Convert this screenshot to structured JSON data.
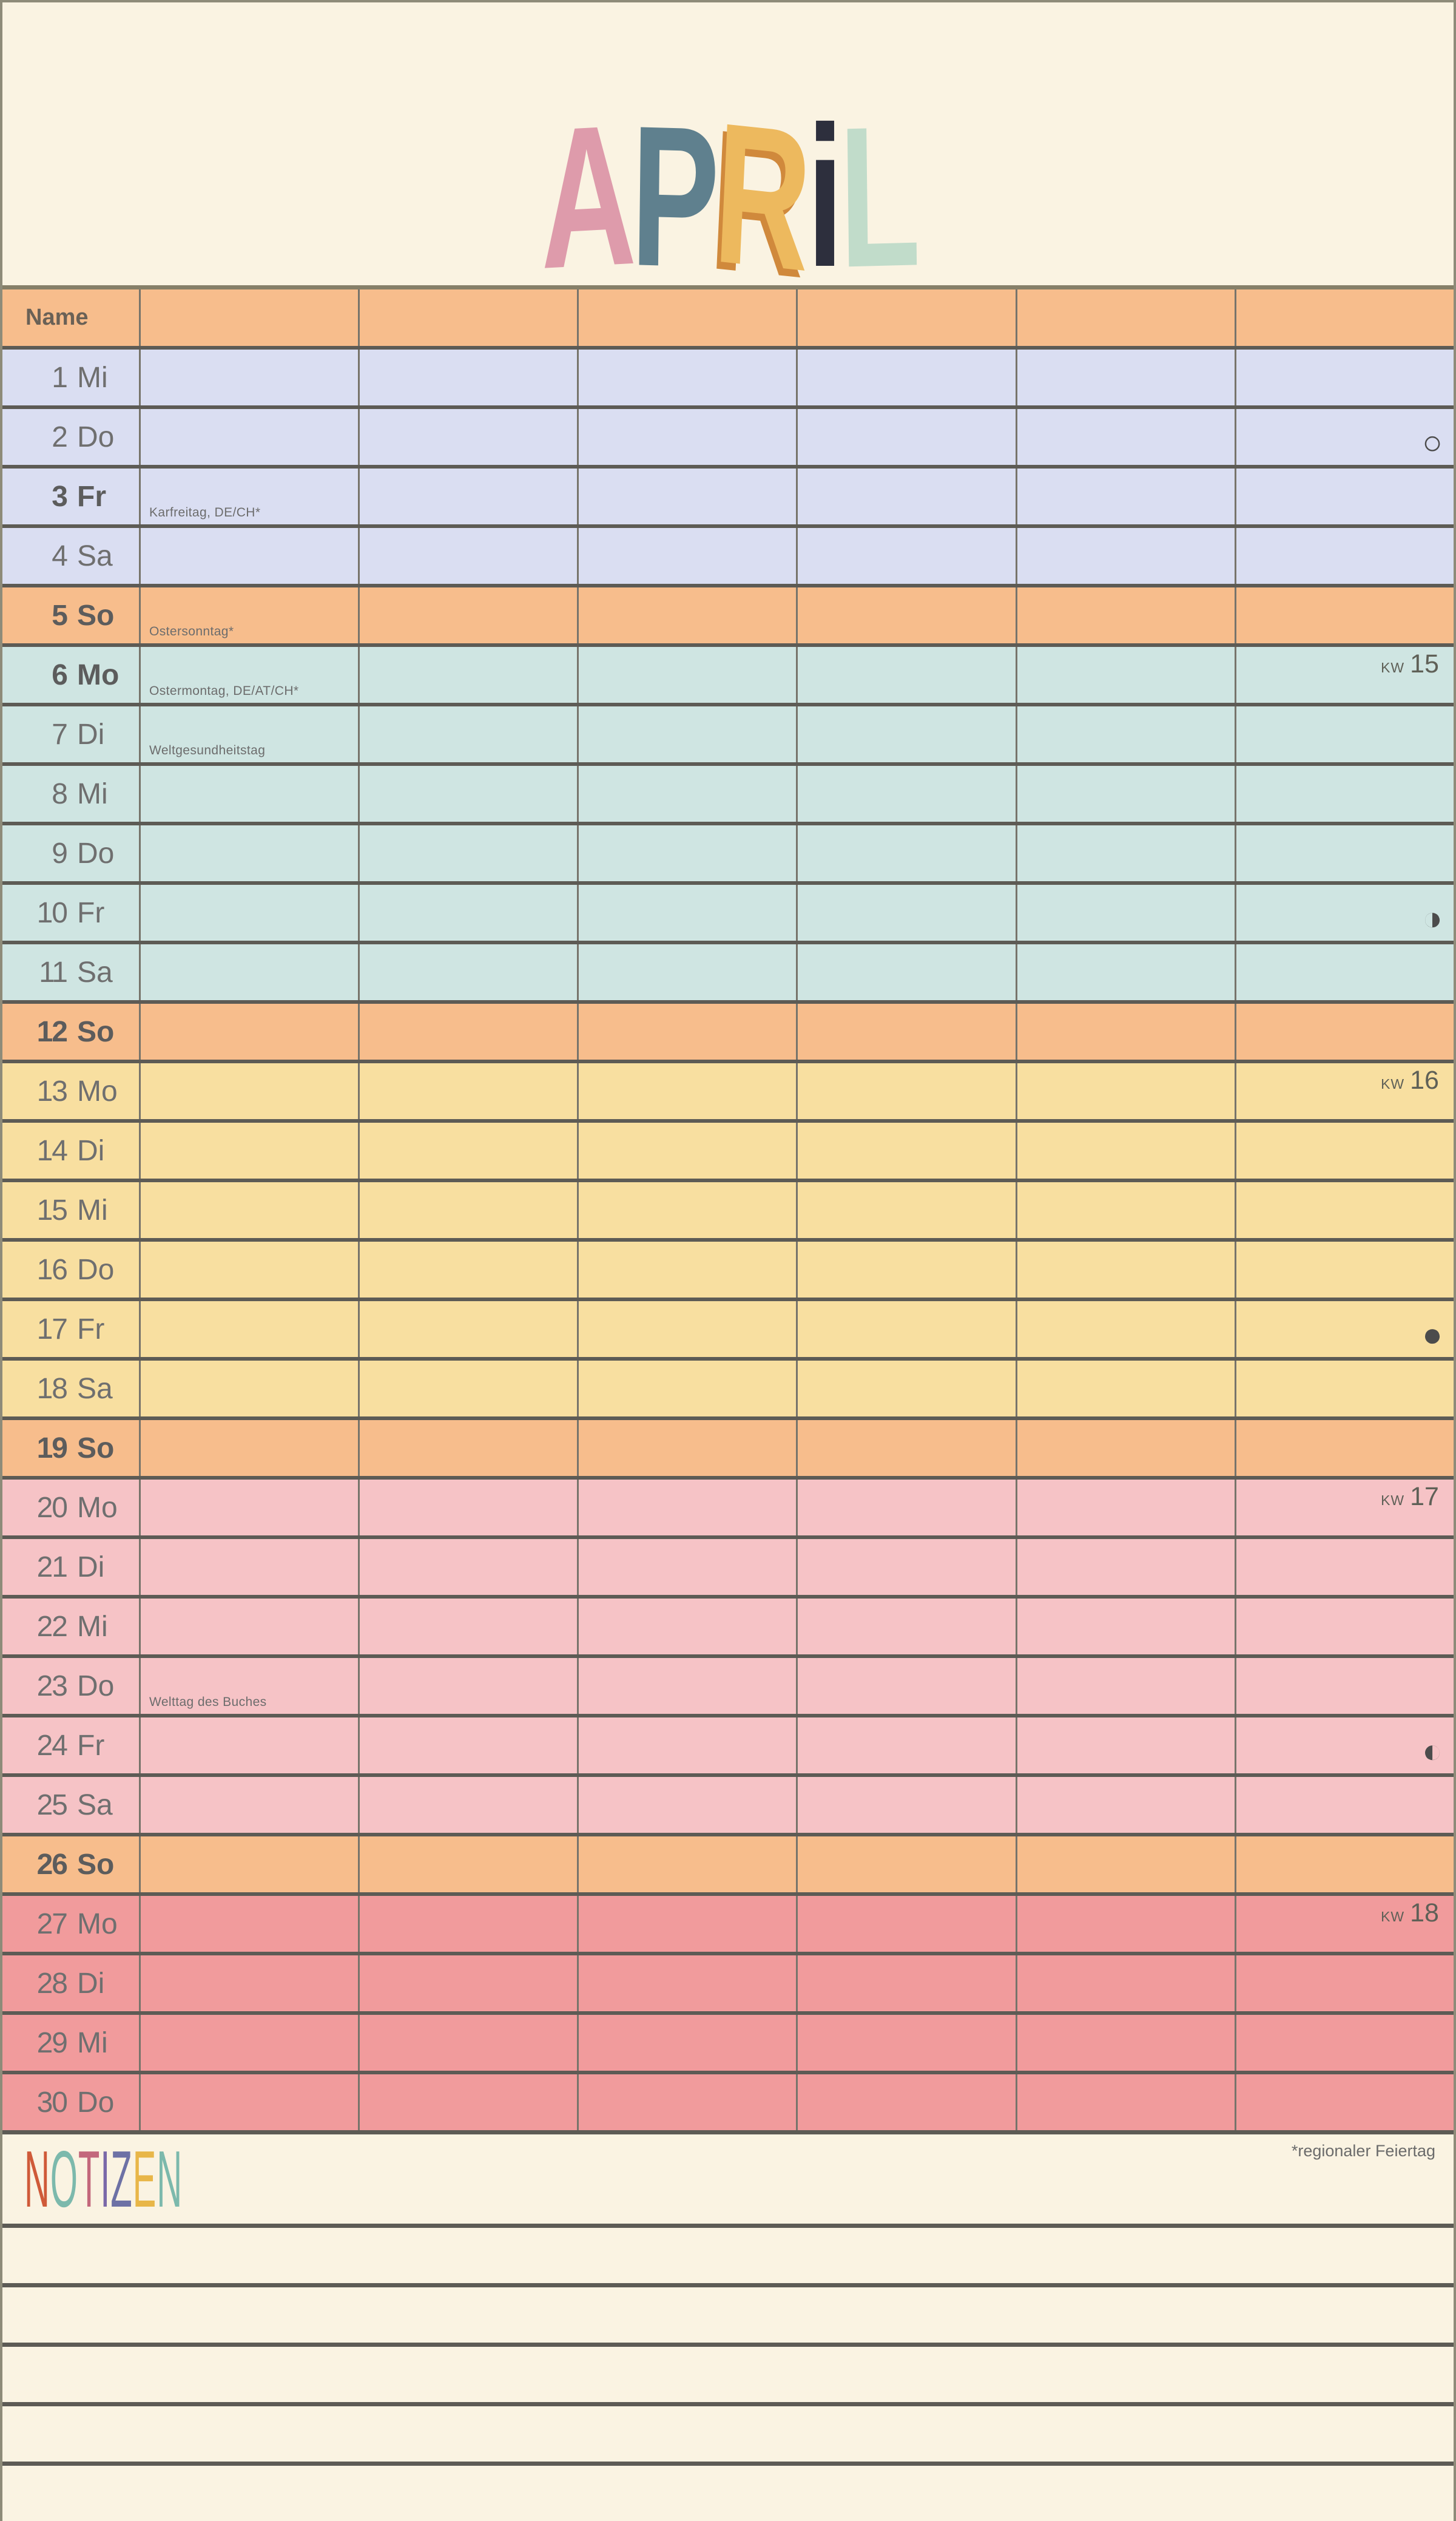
{
  "title": {
    "text": "APRIL",
    "letters": [
      {
        "ch": "A",
        "color": "#de9bab",
        "rot": -2
      },
      {
        "ch": "P",
        "color": "#5f808e",
        "rot": 1
      },
      {
        "ch": "R",
        "color": "#edb95e",
        "rot": 4,
        "shadow": "#d0893c"
      },
      {
        "ch": "i",
        "color": "#2d2f3d",
        "rot": 0
      },
      {
        "ch": "L",
        "color": "#c1dcca",
        "rot": -1
      }
    ]
  },
  "table": {
    "header": {
      "name_label": "Name",
      "blank_columns": 6
    },
    "kw_prefix": "KW",
    "week_colors": {
      "header": "#f7bd8c",
      "sun": "#f7bd8c",
      "w1": "#dadef2",
      "w2": "#cfe5e2",
      "w3": "#f8dfa0",
      "w4": "#f6c3c6",
      "w5": "#f19b9c"
    },
    "days": [
      {
        "num": 1,
        "wd": "Mi",
        "week": "w1"
      },
      {
        "num": 2,
        "wd": "Do",
        "week": "w1",
        "moon": {
          "phase": "full-moon",
          "symbol": "○"
        }
      },
      {
        "num": 3,
        "wd": "Fr",
        "week": "w1",
        "bold": true,
        "note": "Karfreitag, DE/CH*"
      },
      {
        "num": 4,
        "wd": "Sa",
        "week": "w1"
      },
      {
        "num": 5,
        "wd": "So",
        "week": "sun",
        "bold": true,
        "note": "Ostersonntag*"
      },
      {
        "num": 6,
        "wd": "Mo",
        "week": "w2",
        "bold": true,
        "note": "Ostermontag, DE/AT/CH*",
        "kw": "15"
      },
      {
        "num": 7,
        "wd": "Di",
        "week": "w2",
        "note": "Weltgesundheitstag"
      },
      {
        "num": 8,
        "wd": "Mi",
        "week": "w2"
      },
      {
        "num": 9,
        "wd": "Do",
        "week": "w2"
      },
      {
        "num": 10,
        "wd": "Fr",
        "week": "w2",
        "moon": {
          "phase": "last-quarter",
          "symbol": "◑"
        }
      },
      {
        "num": 11,
        "wd": "Sa",
        "week": "w2"
      },
      {
        "num": 12,
        "wd": "So",
        "week": "sun",
        "bold": true
      },
      {
        "num": 13,
        "wd": "Mo",
        "week": "w3",
        "kw": "16"
      },
      {
        "num": 14,
        "wd": "Di",
        "week": "w3"
      },
      {
        "num": 15,
        "wd": "Mi",
        "week": "w3"
      },
      {
        "num": 16,
        "wd": "Do",
        "week": "w3"
      },
      {
        "num": 17,
        "wd": "Fr",
        "week": "w3",
        "moon": {
          "phase": "new-moon",
          "symbol": "●"
        }
      },
      {
        "num": 18,
        "wd": "Sa",
        "week": "w3"
      },
      {
        "num": 19,
        "wd": "So",
        "week": "sun",
        "bold": true
      },
      {
        "num": 20,
        "wd": "Mo",
        "week": "w4",
        "kw": "17"
      },
      {
        "num": 21,
        "wd": "Di",
        "week": "w4"
      },
      {
        "num": 22,
        "wd": "Mi",
        "week": "w4"
      },
      {
        "num": 23,
        "wd": "Do",
        "week": "w4",
        "note": "Welttag des Buches"
      },
      {
        "num": 24,
        "wd": "Fr",
        "week": "w4",
        "moon": {
          "phase": "first-quarter",
          "symbol": "◐"
        }
      },
      {
        "num": 25,
        "wd": "Sa",
        "week": "w4"
      },
      {
        "num": 26,
        "wd": "So",
        "week": "sun",
        "bold": true
      },
      {
        "num": 27,
        "wd": "Mo",
        "week": "w5",
        "kw": "18"
      },
      {
        "num": 28,
        "wd": "Di",
        "week": "w5"
      },
      {
        "num": 29,
        "wd": "Mi",
        "week": "w5"
      },
      {
        "num": 30,
        "wd": "Do",
        "week": "w5"
      }
    ]
  },
  "notes": {
    "title": "NOTIZEN",
    "title_letters": [
      {
        "ch": "N",
        "color": "#cf5a39"
      },
      {
        "ch": "O",
        "color": "#7cb9ac"
      },
      {
        "ch": "T",
        "color": "#c3687c"
      },
      {
        "ch": "I",
        "color": "#7a68a8"
      },
      {
        "ch": "Z",
        "color": "#6d71a5"
      },
      {
        "ch": "E",
        "color": "#e8b648"
      },
      {
        "ch": "N",
        "color": "#7cb9ac"
      }
    ],
    "footnote": "*regionaler Feiertag",
    "line_count": 5
  }
}
